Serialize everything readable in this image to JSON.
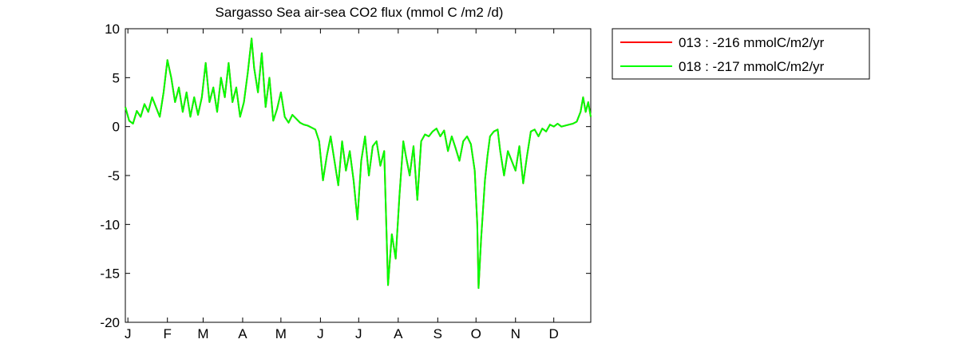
{
  "chart_data": {
    "type": "line",
    "title": "Sargasso Sea  air-sea CO2 flux (mmol C /m2 /d)",
    "xlabel": "",
    "ylabel": "",
    "x_unit": "day of year",
    "xlim": [
      0,
      365
    ],
    "ylim": [
      -20,
      10
    ],
    "yticks": [
      10,
      5,
      0,
      -5,
      -10,
      -15,
      -20
    ],
    "xticks": [
      {
        "label": "J",
        "day": 2
      },
      {
        "label": "F",
        "day": 33
      },
      {
        "label": "M",
        "day": 61
      },
      {
        "label": "A",
        "day": 92
      },
      {
        "label": "M",
        "day": 122
      },
      {
        "label": "J",
        "day": 153
      },
      {
        "label": "J",
        "day": 183
      },
      {
        "label": "A",
        "day": 214
      },
      {
        "label": "S",
        "day": 245
      },
      {
        "label": "O",
        "day": 275
      },
      {
        "label": "N",
        "day": 306
      },
      {
        "label": "D",
        "day": 336
      }
    ],
    "grid": false,
    "legend_position": "outside-top-right",
    "series": [
      {
        "name": "013 : -216 mmolC/m2/yr",
        "color": "#ff0000",
        "points": [
          [
            0,
            2.0
          ],
          [
            3,
            0.6
          ],
          [
            6,
            0.3
          ],
          [
            9,
            1.6
          ],
          [
            12,
            1.0
          ],
          [
            15,
            2.3
          ],
          [
            18,
            1.5
          ],
          [
            21,
            3.0
          ],
          [
            24,
            2.0
          ],
          [
            27,
            1.0
          ],
          [
            30,
            3.5
          ],
          [
            33,
            6.8
          ],
          [
            36,
            5.0
          ],
          [
            39,
            2.5
          ],
          [
            42,
            4.0
          ],
          [
            45,
            1.5
          ],
          [
            48,
            3.5
          ],
          [
            51,
            1.0
          ],
          [
            54,
            3.0
          ],
          [
            57,
            1.2
          ],
          [
            60,
            3.0
          ],
          [
            63,
            6.5
          ],
          [
            66,
            2.5
          ],
          [
            69,
            4.0
          ],
          [
            72,
            1.5
          ],
          [
            75,
            5.0
          ],
          [
            78,
            3.0
          ],
          [
            81,
            6.5
          ],
          [
            84,
            2.5
          ],
          [
            87,
            4.0
          ],
          [
            90,
            1.0
          ],
          [
            93,
            2.5
          ],
          [
            96,
            5.5
          ],
          [
            99,
            9.0
          ],
          [
            101,
            6.0
          ],
          [
            104,
            3.5
          ],
          [
            107,
            7.5
          ],
          [
            110,
            2.0
          ],
          [
            113,
            5.0
          ],
          [
            116,
            0.6
          ],
          [
            119,
            1.8
          ],
          [
            122,
            3.5
          ],
          [
            125,
            1.0
          ],
          [
            128,
            0.4
          ],
          [
            131,
            1.2
          ],
          [
            134,
            0.8
          ],
          [
            137,
            0.4
          ],
          [
            140,
            0.2
          ],
          [
            143,
            0.1
          ],
          [
            146,
            -0.1
          ],
          [
            149,
            -0.3
          ],
          [
            152,
            -1.5
          ],
          [
            155,
            -5.5
          ],
          [
            158,
            -3.0
          ],
          [
            161,
            -1.0
          ],
          [
            164,
            -3.5
          ],
          [
            167,
            -6.0
          ],
          [
            170,
            -1.5
          ],
          [
            173,
            -4.5
          ],
          [
            176,
            -2.5
          ],
          [
            179,
            -5.5
          ],
          [
            182,
            -9.5
          ],
          [
            185,
            -3.5
          ],
          [
            188,
            -1.0
          ],
          [
            191,
            -5.0
          ],
          [
            194,
            -2.0
          ],
          [
            197,
            -1.5
          ],
          [
            200,
            -4.0
          ],
          [
            203,
            -2.5
          ],
          [
            206,
            -16.2
          ],
          [
            209,
            -11.0
          ],
          [
            212,
            -13.5
          ],
          [
            215,
            -7.0
          ],
          [
            218,
            -1.5
          ],
          [
            220,
            -3.0
          ],
          [
            223,
            -5.0
          ],
          [
            226,
            -2.0
          ],
          [
            229,
            -7.5
          ],
          [
            232,
            -1.5
          ],
          [
            235,
            -0.8
          ],
          [
            238,
            -1.0
          ],
          [
            241,
            -0.5
          ],
          [
            244,
            -0.2
          ],
          [
            247,
            -1.0
          ],
          [
            250,
            -0.4
          ],
          [
            253,
            -2.5
          ],
          [
            256,
            -1.0
          ],
          [
            259,
            -2.2
          ],
          [
            262,
            -3.5
          ],
          [
            265,
            -1.5
          ],
          [
            268,
            -1.0
          ],
          [
            271,
            -1.8
          ],
          [
            274,
            -4.5
          ],
          [
            276,
            -10.0
          ],
          [
            277,
            -16.5
          ],
          [
            279,
            -11.5
          ],
          [
            282,
            -5.5
          ],
          [
            284,
            -3.0
          ],
          [
            286,
            -1.0
          ],
          [
            289,
            -0.5
          ],
          [
            292,
            -0.3
          ],
          [
            294,
            -2.5
          ],
          [
            297,
            -5.0
          ],
          [
            300,
            -2.5
          ],
          [
            303,
            -3.5
          ],
          [
            306,
            -4.5
          ],
          [
            309,
            -2.0
          ],
          [
            312,
            -5.8
          ],
          [
            315,
            -3.0
          ],
          [
            318,
            -0.5
          ],
          [
            321,
            -0.3
          ],
          [
            324,
            -1.0
          ],
          [
            327,
            -0.2
          ],
          [
            330,
            -0.5
          ],
          [
            333,
            0.2
          ],
          [
            336,
            0.0
          ],
          [
            339,
            0.3
          ],
          [
            342,
            0.0
          ],
          [
            345,
            0.1
          ],
          [
            348,
            0.2
          ],
          [
            351,
            0.3
          ],
          [
            354,
            0.5
          ],
          [
            357,
            1.5
          ],
          [
            359,
            3.0
          ],
          [
            361,
            1.5
          ],
          [
            363,
            2.5
          ],
          [
            365,
            1.0
          ]
        ]
      },
      {
        "name": "018 : -217 mmolC/m2/yr",
        "color": "#00ff00",
        "points": [
          [
            0,
            2.0
          ],
          [
            3,
            0.6
          ],
          [
            6,
            0.3
          ],
          [
            9,
            1.6
          ],
          [
            12,
            1.0
          ],
          [
            15,
            2.3
          ],
          [
            18,
            1.5
          ],
          [
            21,
            3.0
          ],
          [
            24,
            2.0
          ],
          [
            27,
            1.0
          ],
          [
            30,
            3.5
          ],
          [
            33,
            6.8
          ],
          [
            36,
            5.0
          ],
          [
            39,
            2.5
          ],
          [
            42,
            4.0
          ],
          [
            45,
            1.5
          ],
          [
            48,
            3.5
          ],
          [
            51,
            1.0
          ],
          [
            54,
            3.0
          ],
          [
            57,
            1.2
          ],
          [
            60,
            3.0
          ],
          [
            63,
            6.5
          ],
          [
            66,
            2.5
          ],
          [
            69,
            4.0
          ],
          [
            72,
            1.5
          ],
          [
            75,
            5.0
          ],
          [
            78,
            3.0
          ],
          [
            81,
            6.5
          ],
          [
            84,
            2.5
          ],
          [
            87,
            4.0
          ],
          [
            90,
            1.0
          ],
          [
            93,
            2.5
          ],
          [
            96,
            5.5
          ],
          [
            99,
            9.0
          ],
          [
            101,
            6.0
          ],
          [
            104,
            3.5
          ],
          [
            107,
            7.5
          ],
          [
            110,
            2.0
          ],
          [
            113,
            5.0
          ],
          [
            116,
            0.6
          ],
          [
            119,
            1.8
          ],
          [
            122,
            3.5
          ],
          [
            125,
            1.0
          ],
          [
            128,
            0.4
          ],
          [
            131,
            1.2
          ],
          [
            134,
            0.8
          ],
          [
            137,
            0.4
          ],
          [
            140,
            0.2
          ],
          [
            143,
            0.1
          ],
          [
            146,
            -0.1
          ],
          [
            149,
            -0.3
          ],
          [
            152,
            -1.5
          ],
          [
            155,
            -5.5
          ],
          [
            158,
            -3.0
          ],
          [
            161,
            -1.0
          ],
          [
            164,
            -3.5
          ],
          [
            167,
            -6.0
          ],
          [
            170,
            -1.5
          ],
          [
            173,
            -4.5
          ],
          [
            176,
            -2.5
          ],
          [
            179,
            -5.5
          ],
          [
            182,
            -9.5
          ],
          [
            185,
            -3.5
          ],
          [
            188,
            -1.0
          ],
          [
            191,
            -5.0
          ],
          [
            194,
            -2.0
          ],
          [
            197,
            -1.5
          ],
          [
            200,
            -4.0
          ],
          [
            203,
            -2.5
          ],
          [
            206,
            -16.2
          ],
          [
            209,
            -11.0
          ],
          [
            212,
            -13.5
          ],
          [
            215,
            -7.0
          ],
          [
            218,
            -1.5
          ],
          [
            220,
            -3.0
          ],
          [
            223,
            -5.0
          ],
          [
            226,
            -2.0
          ],
          [
            229,
            -7.5
          ],
          [
            232,
            -1.5
          ],
          [
            235,
            -0.8
          ],
          [
            238,
            -1.0
          ],
          [
            241,
            -0.5
          ],
          [
            244,
            -0.2
          ],
          [
            247,
            -1.0
          ],
          [
            250,
            -0.4
          ],
          [
            253,
            -2.5
          ],
          [
            256,
            -1.0
          ],
          [
            259,
            -2.2
          ],
          [
            262,
            -3.5
          ],
          [
            265,
            -1.5
          ],
          [
            268,
            -1.0
          ],
          [
            271,
            -1.8
          ],
          [
            274,
            -4.5
          ],
          [
            276,
            -10.0
          ],
          [
            277,
            -16.5
          ],
          [
            279,
            -11.5
          ],
          [
            282,
            -5.5
          ],
          [
            284,
            -3.0
          ],
          [
            286,
            -1.0
          ],
          [
            289,
            -0.5
          ],
          [
            292,
            -0.3
          ],
          [
            294,
            -2.5
          ],
          [
            297,
            -5.0
          ],
          [
            300,
            -2.5
          ],
          [
            303,
            -3.5
          ],
          [
            306,
            -4.5
          ],
          [
            309,
            -2.0
          ],
          [
            312,
            -5.8
          ],
          [
            315,
            -3.0
          ],
          [
            318,
            -0.5
          ],
          [
            321,
            -0.3
          ],
          [
            324,
            -1.0
          ],
          [
            327,
            -0.2
          ],
          [
            330,
            -0.5
          ],
          [
            333,
            0.2
          ],
          [
            336,
            0.0
          ],
          [
            339,
            0.3
          ],
          [
            342,
            0.0
          ],
          [
            345,
            0.1
          ],
          [
            348,
            0.2
          ],
          [
            351,
            0.3
          ],
          [
            354,
            0.5
          ],
          [
            357,
            1.5
          ],
          [
            359,
            3.0
          ],
          [
            361,
            1.5
          ],
          [
            363,
            2.5
          ],
          [
            365,
            1.0
          ]
        ]
      }
    ]
  }
}
